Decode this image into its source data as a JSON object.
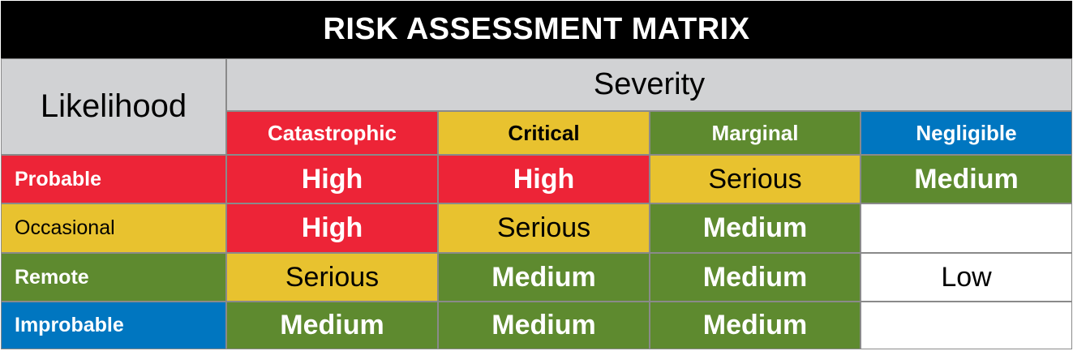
{
  "title": "RISK ASSESSMENT MATRIX",
  "likelihood_header": "Likelihood",
  "severity_header": "Severity",
  "colors": {
    "red": "#ed2437",
    "yellow": "#e8c22f",
    "green": "#5e8a2f",
    "blue": "#0076c0",
    "gray": "#d1d2d4",
    "black": "#000000"
  },
  "severity_levels": [
    "Catastrophic",
    "Critical",
    "Marginal",
    "Negligible"
  ],
  "rows": [
    {
      "label": "Probable",
      "cells": [
        "High",
        "High",
        "Serious",
        "Medium"
      ]
    },
    {
      "label": "Occasional",
      "cells": [
        "High",
        "Serious",
        "Medium",
        ""
      ]
    },
    {
      "label": "Remote",
      "cells": [
        "Serious",
        "Medium",
        "Medium",
        "Low"
      ]
    },
    {
      "label": "Improbable",
      "cells": [
        "Medium",
        "Medium",
        "Medium",
        ""
      ]
    }
  ]
}
